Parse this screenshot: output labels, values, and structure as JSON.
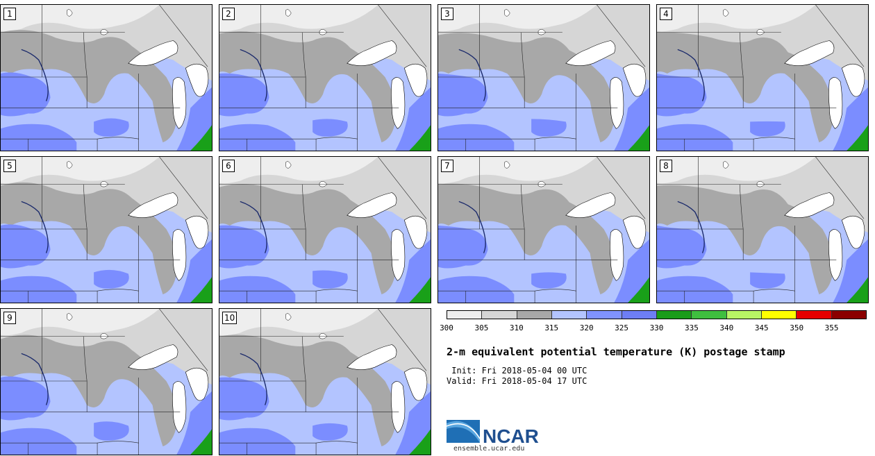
{
  "panels": [
    {
      "label": "1"
    },
    {
      "label": "2"
    },
    {
      "label": "3"
    },
    {
      "label": "4"
    },
    {
      "label": "5"
    },
    {
      "label": "6"
    },
    {
      "label": "7"
    },
    {
      "label": "8"
    },
    {
      "label": "9"
    },
    {
      "label": "10"
    }
  ],
  "colorbar": {
    "ticks": [
      "300",
      "305",
      "310",
      "315",
      "320",
      "325",
      "330",
      "335",
      "340",
      "345",
      "350",
      "355"
    ],
    "colors": [
      "#eeeeee",
      "#d6d6d6",
      "#a8a8a8",
      "#b3c4ff",
      "#8093ff",
      "#6e7ef5",
      "#1a9c1a",
      "#3fbf3f",
      "#b8f565",
      "#ffff00",
      "#e60000",
      "#8b0000"
    ]
  },
  "map_colors": {
    "very_light": "#eeeeee",
    "light_gray": "#d6d6d6",
    "mid_gray": "#a8a8a8",
    "light_blue": "#b3c4ff",
    "blue": "#7b8dff",
    "green": "#19a019",
    "water": "#ffffff"
  },
  "title": "2-m equivalent potential temperature (K) postage stamp",
  "init": "Init: Fri 2018-05-04 00 UTC",
  "valid": "Valid: Fri 2018-05-04 17 UTC",
  "logo": {
    "text": "NCAR",
    "url": "ensemble.ucar.edu"
  }
}
